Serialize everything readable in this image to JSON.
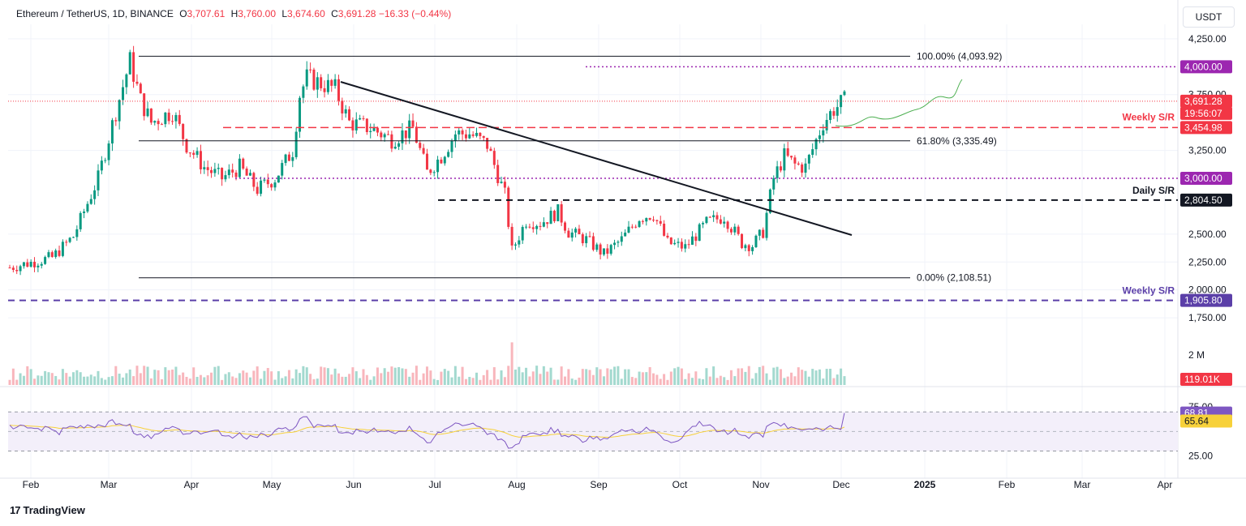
{
  "header": {
    "symbol": "Ethereum / TetherUS, 1D, BINANCE",
    "open_label": "O",
    "open": "3,707.61",
    "high_label": "H",
    "high": "3,760.00",
    "low_label": "L",
    "low": "3,674.60",
    "close_label": "C",
    "close": "3,691.28",
    "change": "−16.33 (−0.44%)"
  },
  "currency": "USDT",
  "brand": {
    "logo": "17",
    "name": "TradingView"
  },
  "colors": {
    "up": "#089981",
    "down": "#f23645",
    "purple": "#9c27b0",
    "indigo": "#5b3fa8",
    "rsi": "#7e57c2",
    "rsi_ma": "#f7d13a",
    "projection": "#4caf50",
    "grid": "#f0f3fa"
  },
  "chart_data": {
    "type": "candlestick",
    "symbol": "Ethereum / TetherUS",
    "timeframe": "1D",
    "exchange": "BINANCE",
    "x_labels": [
      "Feb",
      "Mar",
      "Apr",
      "May",
      "Jun",
      "Jul",
      "Aug",
      "Sep",
      "Oct",
      "Nov",
      "Dec",
      "2025",
      "Feb",
      "Mar",
      "Apr"
    ],
    "y_ticks": [
      "4,250.00",
      "3,750.00",
      "3,250.00",
      "2,500.00",
      "2,250.00",
      "2,000.00",
      "1,750.00"
    ],
    "y_range": [
      1620,
      4380
    ],
    "price_path": [
      [
        0,
        2200
      ],
      [
        12,
        2290
      ],
      [
        18,
        2480
      ],
      [
        25,
        3000
      ],
      [
        30,
        3600
      ],
      [
        34,
        4050
      ],
      [
        37,
        3700
      ],
      [
        40,
        3500
      ],
      [
        46,
        3600
      ],
      [
        50,
        3300
      ],
      [
        55,
        3100
      ],
      [
        60,
        3000
      ],
      [
        65,
        3100
      ],
      [
        70,
        2900
      ],
      [
        75,
        3000
      ],
      [
        80,
        3250
      ],
      [
        82,
        3750
      ],
      [
        84,
        3900
      ],
      [
        88,
        3850
      ],
      [
        92,
        3800
      ],
      [
        96,
        3500
      ],
      [
        102,
        3450
      ],
      [
        108,
        3350
      ],
      [
        114,
        3450
      ],
      [
        118,
        3050
      ],
      [
        122,
        3200
      ],
      [
        126,
        3400
      ],
      [
        130,
        3400
      ],
      [
        135,
        3300
      ],
      [
        140,
        2850
      ],
      [
        142,
        2350
      ],
      [
        146,
        2620
      ],
      [
        150,
        2600
      ],
      [
        155,
        2700
      ],
      [
        158,
        2520
      ],
      [
        163,
        2450
      ],
      [
        168,
        2320
      ],
      [
        173,
        2450
      ],
      [
        178,
        2650
      ],
      [
        182,
        2680
      ],
      [
        186,
        2420
      ],
      [
        191,
        2380
      ],
      [
        197,
        2600
      ],
      [
        202,
        2660
      ],
      [
        207,
        2420
      ],
      [
        210,
        2400
      ],
      [
        213,
        2520
      ],
      [
        216,
        3000
      ],
      [
        219,
        3200
      ],
      [
        222,
        3120
      ],
      [
        225,
        3100
      ],
      [
        230,
        3500
      ],
      [
        233,
        3620
      ],
      [
        236,
        3691
      ]
    ],
    "forecast_path": [
      [
        0,
        3600
      ],
      [
        40,
        3780
      ],
      [
        56,
        4010
      ]
    ],
    "ohlc_last": {
      "open": 3707.61,
      "high": 3760.0,
      "low": 3674.6,
      "close": 3691.28,
      "change": -16.33,
      "change_pct": -0.44
    },
    "fibonacci": [
      {
        "label": "100.00% (4,093.92)",
        "level": 4093.92
      },
      {
        "label": "61.80% (3,335.49)",
        "level": 3335.49
      },
      {
        "label": "0.00% (2,108.51)",
        "level": 2108.51
      }
    ],
    "price_labels": [
      {
        "text": "4,000.00",
        "value": 4000.0,
        "style": "purple"
      },
      {
        "text": "3,691.28",
        "value": 3691.28,
        "style": "red"
      },
      {
        "text": "19:56:07",
        "value": 3691.28,
        "style": "red-sub"
      },
      {
        "text": "3,454.98",
        "value": 3454.98,
        "style": "red"
      },
      {
        "text": "3,000.00",
        "value": 3000.0,
        "style": "purple"
      },
      {
        "text": "2,804.50",
        "value": 2804.5,
        "style": "black"
      },
      {
        "text": "1,905.80",
        "value": 1905.8,
        "style": "indigo"
      }
    ],
    "annotations": [
      "Weekly S/R",
      "Daily S/R",
      "Weekly S/R"
    ],
    "volume": {
      "axis_label": "2 M",
      "last": "119.01K"
    },
    "rsi": {
      "value": "68.81",
      "ma": "65.64",
      "ticks": [
        "75.00",
        "25.00"
      ],
      "upper": 70,
      "lower": 30
    }
  }
}
